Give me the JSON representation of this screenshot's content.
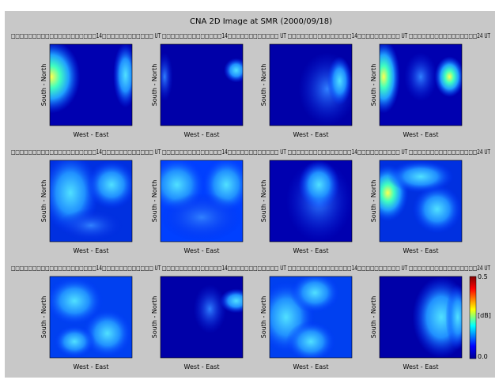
{
  "title": "CNA 2D Image at SMR (2000/09/18)",
  "rows": [
    {
      "header": "□□□□□□□□□□□□□□□□□□□□14□□□□□□□□□□□□ UT □□□□□□□□□□□□□□14□□□□□□□□□□□□ UT □□□□□□□□□□□□□□□14□□□□□□□□□□ UT □□□□□□□□□□□□□□□□24 UT"
    },
    {
      "header": "□□□□□□□□□□□□□□□□□□□□14□□□□□□□□□□□□ UT □□□□□□□□□□□□□□14□□□□□□□□□□□□ UT □□□□□□□□□□□□□□□14□□□□□□□□□□ UT □□□□□□□□□□□□□□□□24 UT"
    },
    {
      "header": "□□□□□□□□□□□□□□□□□□□□14□□□□□□□□□□□□ UT □□□□□□□□□□□□□□14□□□□□□□□□□□□ UT □□□□□□□□□□□□□□□14□□□□□□□□□□ UT □□□□□□□□□□□□□□□□24 UT"
    }
  ],
  "y_label": "South - North",
  "x_label": "West - East",
  "colorbar": {
    "max": "0.5",
    "unit": "[dB]",
    "min": "0.0"
  }
}
